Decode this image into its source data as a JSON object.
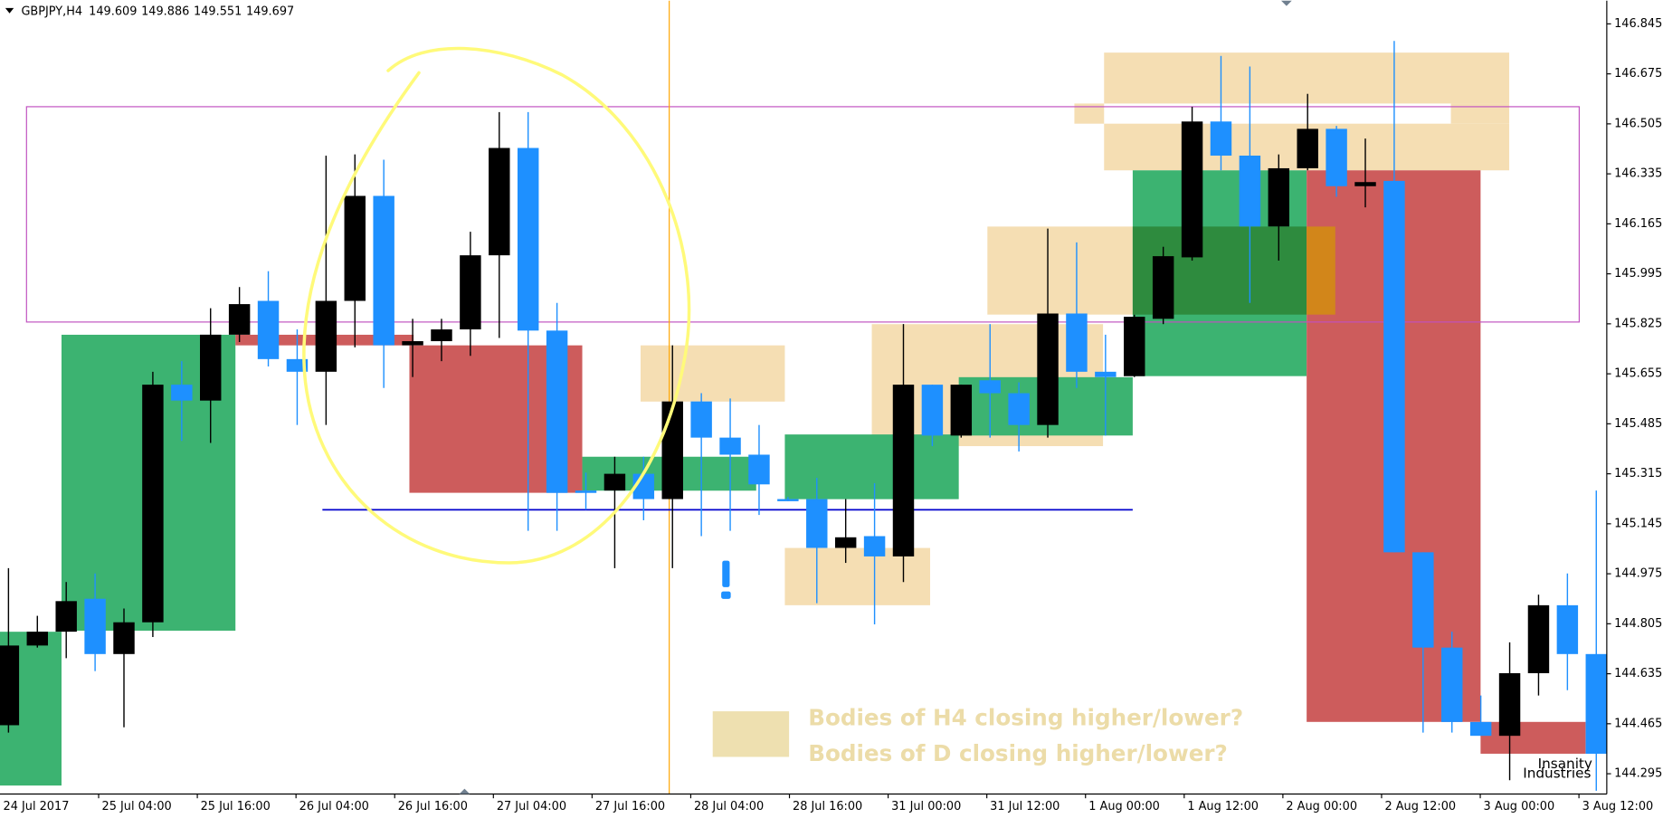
{
  "chart_data": {
    "type": "candlestick",
    "title": "GBPJPY,H4",
    "header_values": [
      149.609,
      149.886,
      149.551,
      149.697
    ],
    "x_axis_labels": [
      "24 Jul 2017",
      "25 Jul 04:00",
      "25 Jul 16:00",
      "26 Jul 04:00",
      "26 Jul 16:00",
      "27 Jul 04:00",
      "27 Jul 16:00",
      "28 Jul 04:00",
      "28 Jul 16:00",
      "31 Jul 00:00",
      "31 Jul 12:00",
      "1 Aug 00:00",
      "1 Aug 12:00",
      "2 Aug 00:00",
      "2 Aug 12:00",
      "3 Aug 00:00",
      "3 Aug 12:00"
    ],
    "open": [
      144.46,
      144.731,
      144.778,
      144.89,
      144.702,
      144.81,
      145.618,
      145.564,
      145.788,
      145.903,
      145.705,
      145.662,
      145.903,
      146.26,
      145.752,
      145.766,
      145.806,
      146.058,
      146.423,
      145.802,
      145.258,
      145.258,
      145.315,
      145.229,
      145.561,
      145.438,
      145.38,
      145.229,
      145.229,
      145.063,
      145.103,
      145.034,
      145.618,
      145.445,
      145.633,
      145.589,
      145.481,
      145.86,
      145.662,
      145.647,
      145.842,
      146.051,
      146.513,
      146.397,
      146.156,
      146.354,
      146.488,
      146.293,
      146.311,
      145.048,
      144.724,
      144.471,
      144.424,
      144.637,
      144.868,
      144.702
    ],
    "high": [
      144.994,
      144.832,
      144.947,
      144.976,
      144.857,
      145.662,
      145.698,
      145.878,
      145.95,
      146.004,
      145.806,
      146.397,
      146.401,
      146.383,
      145.842,
      145.842,
      146.138,
      146.545,
      146.545,
      145.896,
      145.319,
      145.373,
      145.373,
      145.752,
      145.589,
      145.571,
      145.481,
      145.236,
      145.301,
      145.229,
      145.283,
      145.824,
      145.618,
      145.618,
      145.824,
      145.626,
      146.149,
      146.102,
      145.788,
      145.856,
      146.087,
      146.563,
      146.736,
      146.7,
      146.401,
      146.607,
      146.498,
      146.455,
      146.787,
      145.048,
      144.778,
      144.561,
      144.742,
      144.904,
      144.976,
      145.258
    ],
    "low": [
      144.435,
      144.724,
      144.688,
      144.644,
      144.453,
      144.76,
      145.427,
      145.42,
      145.763,
      145.68,
      145.481,
      145.481,
      145.745,
      145.607,
      145.644,
      145.698,
      145.716,
      145.777,
      145.121,
      145.121,
      145.193,
      144.994,
      145.157,
      144.994,
      145.103,
      145.121,
      145.175,
      145.222,
      144.875,
      145.012,
      144.803,
      144.947,
      145.409,
      145.438,
      145.438,
      145.391,
      145.438,
      145.607,
      145.445,
      145.644,
      145.824,
      146.04,
      146.347,
      145.896,
      146.04,
      146.347,
      146.257,
      146.221,
      145.048,
      144.435,
      144.435,
      144.424,
      144.273,
      144.561,
      144.579,
      144.237
    ],
    "close": [
      144.731,
      144.778,
      144.882,
      144.702,
      144.81,
      145.618,
      145.564,
      145.788,
      145.892,
      145.705,
      145.662,
      145.903,
      146.26,
      145.752,
      145.766,
      145.806,
      146.058,
      146.423,
      145.802,
      145.25,
      145.25,
      145.315,
      145.229,
      145.561,
      145.438,
      145.38,
      145.279,
      145.225,
      145.063,
      145.099,
      145.034,
      145.618,
      145.445,
      145.618,
      145.589,
      145.481,
      145.86,
      145.662,
      145.644,
      145.849,
      146.055,
      146.513,
      146.397,
      146.156,
      146.354,
      146.488,
      146.293,
      146.307,
      145.048,
      144.724,
      144.471,
      144.424,
      144.637,
      144.868,
      144.702,
      144.363
    ],
    "up_color": "#000000",
    "down_color": "#1e90ff",
    "ylim": [
      144.226,
      146.924
    ],
    "yticks": [
      146.845,
      146.675,
      146.505,
      146.335,
      146.165,
      145.995,
      145.825,
      145.655,
      145.485,
      145.315,
      145.145,
      144.975,
      144.805,
      144.635,
      144.465,
      144.295
    ],
    "annotations": [
      "Bodies of H4 closing higher/lower?",
      "Bodies of D closing higher/lower?"
    ],
    "watermark": [
      "Insanity",
      "Industries"
    ]
  }
}
